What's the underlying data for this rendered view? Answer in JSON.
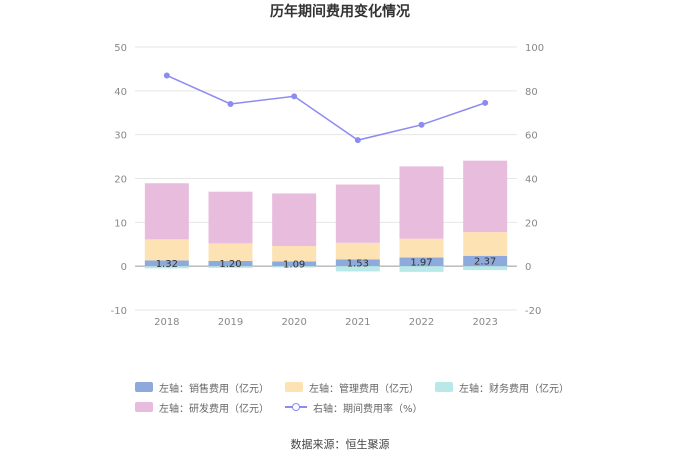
{
  "chart_data": {
    "type": "bar",
    "title": "历年期间费用变化情况",
    "categories": [
      "2018",
      "2019",
      "2020",
      "2021",
      "2022",
      "2023"
    ],
    "left_axis": {
      "ylim": [
        -10,
        50
      ],
      "ticks": [
        "-10",
        "0",
        "10",
        "20",
        "30",
        "40",
        "50"
      ]
    },
    "right_axis": {
      "ylim": [
        -20,
        100
      ],
      "ticks": [
        "-20",
        "0",
        "20",
        "40",
        "60",
        "80",
        "100"
      ]
    },
    "series": [
      {
        "name": "左轴：销售费用（亿元）",
        "kind": "bar",
        "axis": "left",
        "color": "#8eaadc",
        "values": [
          1.32,
          1.2,
          1.09,
          1.53,
          1.97,
          2.37
        ],
        "labels": [
          "1.32",
          "1.20",
          "1.09",
          "1.53",
          "1.97",
          "2.37"
        ]
      },
      {
        "name": "左轴：管理费用（亿元）",
        "kind": "bar",
        "axis": "left",
        "color": "#fde2b3",
        "values": [
          4.8,
          4.0,
          3.5,
          3.8,
          4.3,
          5.4
        ]
      },
      {
        "name": "左轴：财务费用（亿元）",
        "kind": "bar",
        "axis": "left",
        "color": "#b9e8e9",
        "values": [
          -0.5,
          -0.4,
          -0.3,
          -1.2,
          -1.3,
          -0.9
        ]
      },
      {
        "name": "左轴：研发费用（亿元）",
        "kind": "bar",
        "axis": "left",
        "color": "#e8bcdc",
        "values": [
          12.8,
          11.8,
          12.0,
          13.3,
          16.5,
          16.3
        ]
      },
      {
        "name": "右轴：期间费用率（%）",
        "kind": "line",
        "axis": "right",
        "color": "#8c8cf0",
        "values": [
          87,
          74,
          77.5,
          57.5,
          64.5,
          74.5
        ]
      }
    ],
    "source": "数据来源：恒生聚源"
  }
}
